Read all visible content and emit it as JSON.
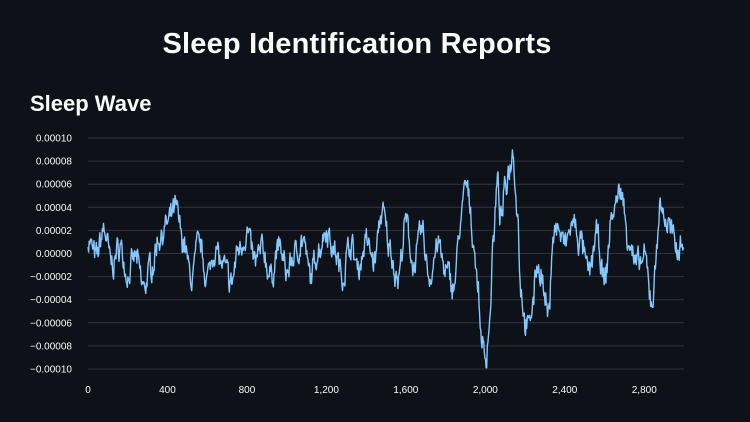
{
  "page": {
    "title": "Sleep Identification Reports",
    "section_title": "Sleep Wave"
  },
  "colors": {
    "background": "#0e1117",
    "grid": "#31333f",
    "line": "#83c9ff",
    "text": "#fafafa"
  },
  "chart_data": {
    "type": "line",
    "title": "",
    "xlabel": "",
    "ylabel": "",
    "xlim": [
      0,
      3000
    ],
    "ylim": [
      -0.0001,
      0.0001
    ],
    "grid": true,
    "legend": "none",
    "x_ticks": [
      0,
      400,
      800,
      1200,
      1600,
      2000,
      2400,
      2800
    ],
    "x_tick_labels": [
      "0",
      "400",
      "800",
      "1,200",
      "1,600",
      "2,000",
      "2,400",
      "2,800"
    ],
    "y_ticks": [
      0.0001,
      8e-05,
      6e-05,
      4e-05,
      2e-05,
      0,
      -2e-05,
      -4e-05,
      -6e-05,
      -8e-05,
      -0.0001
    ],
    "y_tick_labels": [
      "0.00010",
      "0.00008",
      "0.00006",
      "0.00004",
      "0.00002",
      "0.00000",
      "−0.00002",
      "−0.00004",
      "−0.00006",
      "−0.00008",
      "−0.00010"
    ],
    "series": [
      {
        "x": [
          0,
          40,
          80,
          120,
          160,
          200,
          240,
          280,
          320,
          360,
          400,
          440,
          480,
          520,
          560,
          600,
          640,
          680,
          720,
          760,
          800,
          840,
          880,
          920,
          960,
          1000,
          1040,
          1080,
          1120,
          1160,
          1200,
          1240,
          1280,
          1320,
          1360,
          1400,
          1440,
          1480,
          1520,
          1560,
          1600,
          1640,
          1680,
          1720,
          1760,
          1800,
          1840,
          1880,
          1900,
          1920,
          1940,
          1960,
          1980,
          2000,
          2020,
          2040,
          2060,
          2080,
          2100,
          2120,
          2140,
          2160,
          2180,
          2200,
          2220,
          2240,
          2260,
          2280,
          2300,
          2320,
          2340,
          2360,
          2400,
          2440,
          2480,
          2520,
          2560,
          2600,
          2640,
          2680,
          2720,
          2760,
          2800,
          2840,
          2880,
          2920,
          2960,
          3000
        ],
        "y": [
          1.2e-05,
          -4e-06,
          2e-05,
          -1e-05,
          6e-06,
          -1.8e-05,
          -4e-06,
          -3e-05,
          -1e-05,
          1.5e-05,
          2.5e-05,
          3.8e-05,
          1e-05,
          -2.2e-05,
          8e-06,
          -2e-05,
          4e-06,
          -1.2e-05,
          -2.6e-05,
          5e-06,
          1.8e-05,
          -8e-06,
          3e-06,
          -2e-05,
          6e-06,
          -1.6e-05,
          -2e-06,
          1.2e-05,
          -2e-05,
          4e-06,
          2.2e-05,
          2e-06,
          -1.8e-05,
          8e-06,
          -1.2e-05,
          1e-05,
          -6e-06,
          3.6e-05,
          4e-06,
          -2.2e-05,
          2.6e-05,
          -1e-05,
          1.8e-05,
          -2e-05,
          8e-06,
          -1.6e-05,
          -2.8e-05,
          3e-05,
          6e-05,
          4.5e-05,
          1.2e-05,
          -2.5e-05,
          -7e-05,
          -9.5e-05,
          -6e-05,
          1e-05,
          6e-05,
          3e-05,
          5.5e-05,
          7.5e-05,
          9e-05,
          4e-05,
          -3e-05,
          -6e-05,
          -6.5e-05,
          -4e-05,
          -1e-05,
          -1.5e-05,
          -4e-05,
          -5.5e-05,
          1.8e-05,
          2.2e-05,
          8e-06,
          2.6e-05,
          1e-05,
          -1.8e-05,
          1.5e-05,
          -2.5e-05,
          3.5e-05,
          5.5e-05,
          1.5e-05,
          -1.2e-05,
          -5e-06,
          -4e-05,
          4e-05,
          2.5e-05,
          5e-06,
          1.2e-05
        ]
      }
    ]
  }
}
